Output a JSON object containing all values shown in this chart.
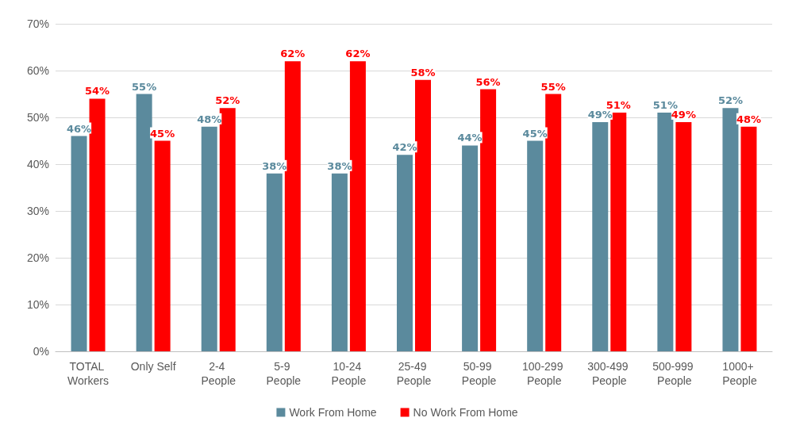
{
  "chart_data": {
    "type": "bar",
    "categories": [
      "TOTAL Workers",
      "Only Self",
      "2-4 People",
      "5-9 People",
      "10-24 People",
      "25-49 People",
      "50-99 People",
      "100-299 People",
      "300-499 People",
      "500-999 People",
      "1000+ People"
    ],
    "series": [
      {
        "name": "Work From Home",
        "color": "#5b8a9d",
        "values": [
          46,
          55,
          48,
          38,
          38,
          42,
          44,
          45,
          49,
          51,
          52
        ],
        "value_labels": [
          "46%",
          "55%",
          "48%",
          "38%",
          "38%",
          "42%",
          "44%",
          "45%",
          "49%",
          "51%",
          "52%"
        ]
      },
      {
        "name": "No Work From Home",
        "color": "#ff0000",
        "values": [
          54,
          45,
          52,
          62,
          62,
          58,
          56,
          55,
          51,
          49,
          48
        ],
        "value_labels": [
          "54%",
          "45%",
          "52%",
          "62%",
          "62%",
          "58%",
          "56%",
          "55%",
          "51%",
          "49%",
          "48%"
        ]
      }
    ],
    "ylim": [
      0,
      70
    ],
    "yticks": [
      {
        "value": 0,
        "label": "0%"
      },
      {
        "value": 10,
        "label": "10%"
      },
      {
        "value": 20,
        "label": "20%"
      },
      {
        "value": 30,
        "label": "30%"
      },
      {
        "value": 40,
        "label": "40%"
      },
      {
        "value": 50,
        "label": "50%"
      },
      {
        "value": 60,
        "label": "60%"
      },
      {
        "value": 70,
        "label": "70%"
      }
    ],
    "grid": "y",
    "legend": "bottom"
  }
}
